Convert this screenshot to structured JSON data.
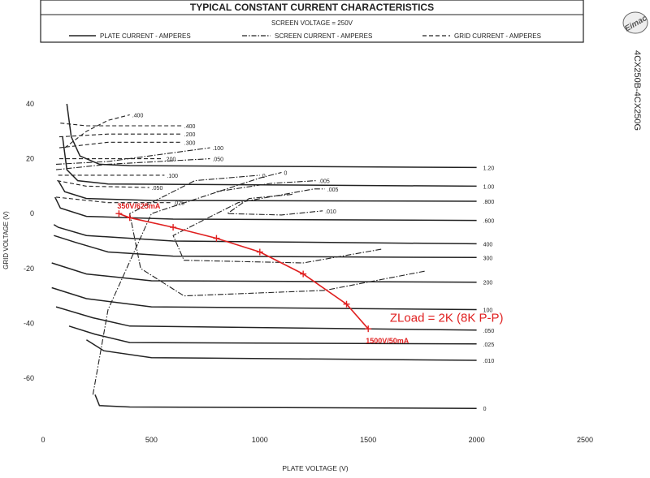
{
  "chart_data": {
    "type": "line",
    "title": "TYPICAL CONSTANT CURRENT CHARACTERISTICS",
    "subtitle": "SCREEN VOLTAGE = 250V",
    "xlabel": "PLATE VOLTAGE (V)",
    "ylabel": "GRID VOLTAGE (V)",
    "xlim": [
      0,
      2500
    ],
    "ylim": [
      -72,
      45
    ],
    "x_ticks": [
      "0",
      "500",
      "1000",
      "1500",
      "2000",
      "2500"
    ],
    "y_ticks": [
      "40",
      "20",
      "0",
      "-20",
      "-40",
      "-60"
    ],
    "grid": false,
    "legend_position": "top",
    "legend": [
      {
        "label": "PLATE CURRENT - AMPERES",
        "style": "solid"
      },
      {
        "label": "SCREEN CURRENT - AMPERES",
        "style": "dash-dot"
      },
      {
        "label": "GRID CURRENT - AMPERES",
        "style": "dashed"
      }
    ],
    "side_label": "4CX250B-4CX250G",
    "logo_text": "Eimac",
    "plate_current_curves": [
      {
        "label": "1.20",
        "points": [
          [
            110,
            40
          ],
          [
            130,
            28
          ],
          [
            170,
            21
          ],
          [
            260,
            18
          ],
          [
            400,
            17.5
          ],
          [
            2000,
            16.8
          ]
        ]
      },
      {
        "label": "1.00",
        "points": [
          [
            90,
            28
          ],
          [
            110,
            16
          ],
          [
            160,
            12
          ],
          [
            300,
            10.8
          ],
          [
            2000,
            10
          ]
        ]
      },
      {
        "label": ".800",
        "points": [
          [
            70,
            12
          ],
          [
            100,
            8
          ],
          [
            200,
            5.5
          ],
          [
            500,
            4.8
          ],
          [
            2000,
            4.5
          ]
        ]
      },
      {
        "label": ".600",
        "points": [
          [
            55,
            6
          ],
          [
            80,
            2
          ],
          [
            200,
            -1
          ],
          [
            600,
            -2
          ],
          [
            2000,
            -2.5
          ]
        ]
      },
      {
        "label": "400",
        "points": [
          [
            50,
            -4
          ],
          [
            70,
            -5
          ],
          [
            200,
            -8
          ],
          [
            600,
            -10
          ],
          [
            2000,
            -11
          ]
        ]
      },
      {
        "label": "300",
        "points": [
          [
            50,
            -8
          ],
          [
            150,
            -10.5
          ],
          [
            300,
            -14
          ],
          [
            600,
            -15.5
          ],
          [
            2000,
            -16
          ]
        ]
      },
      {
        "label": "200",
        "points": [
          [
            40,
            -18
          ],
          [
            200,
            -22
          ],
          [
            500,
            -24.5
          ],
          [
            2000,
            -25
          ]
        ]
      },
      {
        "label": "100",
        "points": [
          [
            40,
            -27
          ],
          [
            200,
            -31
          ],
          [
            500,
            -34
          ],
          [
            2000,
            -35
          ]
        ]
      },
      {
        "label": ".050",
        "points": [
          [
            60,
            -34
          ],
          [
            230,
            -38
          ],
          [
            400,
            -41
          ],
          [
            2000,
            -42.5
          ]
        ]
      },
      {
        "label": ".025",
        "points": [
          [
            120,
            -41
          ],
          [
            240,
            -44
          ],
          [
            400,
            -47
          ],
          [
            2000,
            -47.5
          ]
        ]
      },
      {
        "label": ".010",
        "points": [
          [
            200,
            -46
          ],
          [
            280,
            -50
          ],
          [
            500,
            -52.5
          ],
          [
            2000,
            -53.5
          ]
        ]
      },
      {
        "label": "0",
        "points": [
          [
            240,
            -66
          ],
          [
            260,
            -70
          ],
          [
            400,
            -70.5
          ],
          [
            2000,
            -71
          ]
        ]
      }
    ],
    "grid_current_curves": [
      {
        "label": ".400",
        "points": [
          [
            100,
            24
          ],
          [
            200,
            30
          ],
          [
            300,
            34
          ],
          [
            400,
            36
          ]
        ]
      },
      {
        "label": ".400",
        "points": [
          [
            80,
            33
          ],
          [
            200,
            32
          ],
          [
            400,
            32
          ],
          [
            640,
            32
          ]
        ]
      },
      {
        "label": ".200",
        "points": [
          [
            75,
            28
          ],
          [
            300,
            29
          ],
          [
            640,
            29
          ]
        ]
      },
      {
        "label": ".300",
        "points": [
          [
            75,
            24
          ],
          [
            300,
            26
          ],
          [
            640,
            26
          ]
        ]
      },
      {
        "label": ".200",
        "points": [
          [
            75,
            20
          ],
          [
            300,
            20
          ],
          [
            550,
            20
          ]
        ]
      },
      {
        "label": ".100",
        "points": [
          [
            70,
            14
          ],
          [
            200,
            14
          ],
          [
            560,
            14
          ]
        ]
      },
      {
        "label": ".050",
        "points": [
          [
            65,
            12
          ],
          [
            200,
            10
          ],
          [
            490,
            9.5
          ]
        ]
      },
      {
        "label": ".025",
        "points": [
          [
            60,
            6
          ],
          [
            300,
            4
          ],
          [
            590,
            4
          ]
        ]
      }
    ],
    "screen_current_curves": [
      {
        "label": ".100",
        "points": [
          [
            60,
            18
          ],
          [
            300,
            19
          ],
          [
            770,
            24
          ]
        ]
      },
      {
        "label": ".050",
        "points": [
          [
            60,
            16
          ],
          [
            300,
            18
          ],
          [
            770,
            20
          ]
        ]
      },
      {
        "label": "0",
        "points": [
          [
            230,
            -66
          ],
          [
            300,
            -35
          ],
          [
            500,
            0
          ],
          [
            1000,
            13
          ],
          [
            1100,
            15
          ]
        ]
      },
      {
        "label": ".005",
        "points": [
          [
            800,
            8
          ],
          [
            1050,
            11
          ],
          [
            1260,
            12
          ]
        ]
      },
      {
        "label": ".010",
        "points": [
          [
            1150,
            7
          ],
          [
            950,
            5.5
          ],
          [
            850,
            0
          ],
          [
            1100,
            -0.5
          ],
          [
            1290,
            1
          ]
        ]
      },
      {
        "label": ".005",
        "points": [
          [
            1560,
            -13
          ],
          [
            1200,
            -18
          ],
          [
            650,
            -17
          ],
          [
            600,
            -8
          ],
          [
            900,
            4
          ],
          [
            1250,
            9
          ],
          [
            1300,
            9
          ]
        ]
      },
      {
        "label": "0",
        "points": [
          [
            1760,
            -21
          ],
          [
            1300,
            -28
          ],
          [
            650,
            -30
          ],
          [
            450,
            -20
          ],
          [
            400,
            0
          ],
          [
            700,
            12
          ],
          [
            1000,
            14
          ]
        ]
      }
    ],
    "load_line": {
      "label": "ZLoad = 2K (8K P-P)",
      "start_label": "350V/625mA",
      "end_label": "1500V/50mA",
      "points": [
        [
          350,
          0
        ],
        [
          400,
          -1.5
        ],
        [
          600,
          -5
        ],
        [
          800,
          -9
        ],
        [
          1000,
          -14
        ],
        [
          1200,
          -22
        ],
        [
          1400,
          -33
        ],
        [
          1500,
          -42
        ]
      ]
    }
  },
  "colors": {
    "ink": "#222222",
    "load_line": "#e02020",
    "background": "#ffffff"
  }
}
